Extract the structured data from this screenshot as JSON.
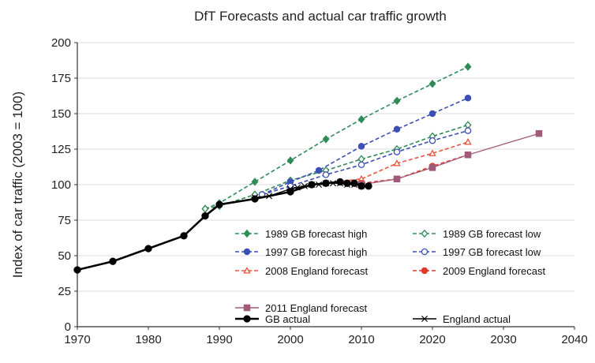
{
  "chart_data": {
    "type": "line",
    "title": "DfT Forecasts and actual car traffic growth",
    "xlabel": "",
    "ylabel": "Index of car traffic (2003 = 100)",
    "xlim": [
      1970,
      2040
    ],
    "ylim": [
      0,
      200
    ],
    "x_ticks": [
      1970,
      1980,
      1990,
      2000,
      2010,
      2020,
      2030,
      2040
    ],
    "y_ticks": [
      0,
      25,
      50,
      75,
      100,
      125,
      150,
      175,
      200
    ],
    "grid": "horizontal",
    "legend_position": "bottom-right, inside plot",
    "series": [
      {
        "name": "1989 GB forecast high",
        "color": "#2e8b57",
        "dash": true,
        "marker": "diamond",
        "filled": true,
        "x": [
          1988,
          1990,
          1995,
          2000,
          2005,
          2010,
          2015,
          2020,
          2025
        ],
        "y": [
          83,
          87,
          102,
          117,
          132,
          146,
          159,
          171,
          183
        ]
      },
      {
        "name": "1989 GB forecast low",
        "color": "#2e8b57",
        "dash": true,
        "marker": "diamond",
        "filled": false,
        "x": [
          1988,
          1990,
          1995,
          2000,
          2005,
          2010,
          2015,
          2020,
          2025
        ],
        "y": [
          83,
          85,
          93,
          103,
          110,
          118,
          125,
          134,
          142
        ]
      },
      {
        "name": "1997 GB forecast high",
        "color": "#3c4fb4",
        "dash": true,
        "marker": "circle",
        "filled": true,
        "x": [
          1996,
          2000,
          2004,
          2010,
          2015,
          2020,
          2025
        ],
        "y": [
          93,
          102,
          110,
          127,
          139,
          150,
          161
        ]
      },
      {
        "name": "1997 GB forecast low",
        "color": "#3c4fb4",
        "dash": true,
        "marker": "circle",
        "filled": false,
        "x": [
          1996,
          2000,
          2005,
          2010,
          2015,
          2020,
          2025
        ],
        "y": [
          93,
          99,
          107,
          114,
          123,
          131,
          138
        ]
      },
      {
        "name": "2008 England forecast",
        "color": "#e8553e",
        "dash": true,
        "marker": "triangle",
        "filled": false,
        "x": [
          2003,
          2010,
          2015,
          2020,
          2025
        ],
        "y": [
          100,
          104,
          115,
          122,
          130
        ]
      },
      {
        "name": "2009 England forecast",
        "color": "#e03a2a",
        "dash": true,
        "marker": "circle",
        "filled": true,
        "x": [
          2010,
          2015,
          2020,
          2025
        ],
        "y": [
          101,
          104,
          113,
          121
        ]
      },
      {
        "name": "2011 England forecast",
        "color": "#a05a7a",
        "dash": false,
        "marker": "square",
        "filled": true,
        "x": [
          2010,
          2015,
          2020,
          2025,
          2035
        ],
        "y": [
          100,
          104,
          112,
          121,
          136
        ]
      },
      {
        "name": "GB actual",
        "color": "#000000",
        "dash": false,
        "marker": "circle",
        "filled": true,
        "bold": true,
        "x": [
          1970,
          1975,
          1980,
          1985,
          1988,
          1990,
          1995,
          2000,
          2003,
          2005,
          2007,
          2008,
          2009,
          2010,
          2011
        ],
        "y": [
          40,
          46,
          55,
          64,
          78,
          86,
          90,
          95,
          100,
          101,
          102,
          101,
          101,
          99,
          99
        ]
      },
      {
        "name": "England actual",
        "color": "#000000",
        "dash": false,
        "marker": "star",
        "filled": true,
        "x": [
          1995,
          1997,
          2000,
          2001,
          2002,
          2003,
          2004,
          2005,
          2006,
          2007,
          2008,
          2009,
          2010
        ],
        "y": [
          91,
          92,
          97,
          98,
          99,
          100,
          100,
          101,
          101,
          101,
          100,
          100,
          99
        ]
      }
    ]
  }
}
